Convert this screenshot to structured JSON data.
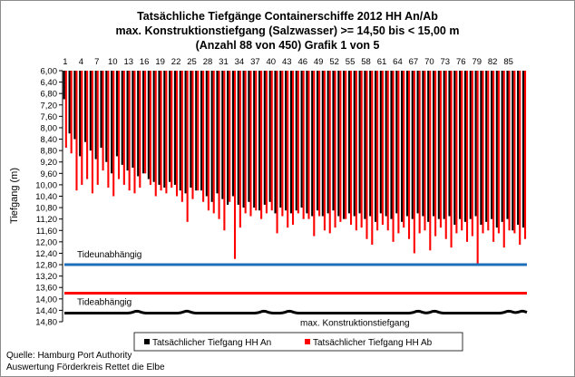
{
  "chart_data": {
    "type": "bar",
    "title_lines": [
      "Tatsächliche Tiefgänge Containerschiffe  2012 HH An/Ab",
      "max. Konstruktionstiefgang  (Salzwasser)  >= 14,50 bis < 15,00 m",
      "(Anzahl 88 von 450) Grafik 1 von 5"
    ],
    "ylabel": "Tiefgang (m)",
    "ylim": [
      6.0,
      14.8
    ],
    "y_inverted": true,
    "y_ticks": [
      "6,00",
      "6,40",
      "6,80",
      "7,20",
      "7,60",
      "8,00",
      "8,40",
      "8,80",
      "9,20",
      "9,60",
      "10,00",
      "10,40",
      "10,80",
      "11,20",
      "11,60",
      "12,00",
      "12,40",
      "12,80",
      "13,20",
      "13,60",
      "14,00",
      "14,40",
      "14,80"
    ],
    "x_tick_labels": [
      "1",
      "4",
      "7",
      "10",
      "13",
      "16",
      "19",
      "22",
      "25",
      "28",
      "31",
      "34",
      "37",
      "40",
      "43",
      "46",
      "49",
      "52",
      "55",
      "58",
      "61",
      "64",
      "67",
      "70",
      "73",
      "76",
      "79",
      "82",
      "85"
    ],
    "series": [
      {
        "name": "Tatsächlicher Tiefgang HH An",
        "color": "#000000",
        "values": [
          7.0,
          8.2,
          8.4,
          9.0,
          8.5,
          8.8,
          9.1,
          8.7,
          9.2,
          9.6,
          9.0,
          9.3,
          9.5,
          9.4,
          9.7,
          9.6,
          9.8,
          9.9,
          10.0,
          10.1,
          9.9,
          10.0,
          10.2,
          10.3,
          10.1,
          10.2,
          10.2,
          10.4,
          10.6,
          10.3,
          10.5,
          10.7,
          10.4,
          10.7,
          10.8,
          10.6,
          10.8,
          10.9,
          10.7,
          10.6,
          11.0,
          10.8,
          10.9,
          11.0,
          10.9,
          10.8,
          11.0,
          11.1,
          10.9,
          11.1,
          11.0,
          10.9,
          11.1,
          11.2,
          11.0,
          11.1,
          11.0,
          11.2,
          11.1,
          11.3,
          11.0,
          11.1,
          11.2,
          11.0,
          11.3,
          11.1,
          11.2,
          11.0,
          11.1,
          11.3,
          11.1,
          11.2,
          11.2,
          11.1,
          11.4,
          11.2,
          11.3,
          11.2,
          11.1,
          11.4,
          11.3,
          11.2,
          11.5,
          11.3,
          11.2,
          11.6,
          11.4,
          11.5
        ]
      },
      {
        "name": "Tatsächlicher Tiefgang HH Ab",
        "color": "#ff0000",
        "values": [
          8.7,
          8.9,
          10.2,
          10.0,
          9.8,
          10.3,
          10.0,
          9.5,
          10.1,
          10.4,
          9.8,
          10.0,
          10.2,
          10.3,
          10.1,
          9.6,
          10.0,
          10.4,
          10.2,
          10.3,
          10.1,
          10.4,
          10.6,
          11.3,
          10.5,
          10.2,
          10.6,
          10.9,
          11.0,
          11.2,
          11.6,
          10.6,
          12.6,
          11.5,
          11.0,
          11.1,
          10.9,
          11.2,
          11.0,
          10.9,
          11.7,
          11.1,
          11.5,
          11.4,
          11.0,
          11.2,
          11.2,
          11.8,
          11.1,
          11.6,
          11.7,
          11.5,
          11.3,
          11.2,
          11.4,
          11.6,
          11.5,
          11.9,
          12.1,
          11.6,
          11.4,
          11.6,
          12.0,
          11.7,
          11.5,
          11.9,
          12.4,
          11.7,
          11.6,
          12.3,
          11.8,
          11.5,
          11.9,
          12.2,
          11.7,
          11.6,
          12.0,
          11.8,
          12.8,
          11.7,
          11.6,
          12.0,
          11.7,
          12.2,
          11.6,
          11.7,
          12.1,
          11.9
        ]
      }
    ],
    "reference_lines": [
      {
        "label": "Tideunabhängig",
        "value": 12.8,
        "color": "#1f6fb8"
      },
      {
        "label": "Tideabhängig",
        "value": 13.8,
        "color": "#ff0000"
      },
      {
        "label": "max. Konstruktionstiefgang",
        "value": 14.5,
        "color": "#000000"
      }
    ],
    "legend": {
      "placement": "bottom",
      "entries": [
        "Tatsächlicher Tiefgang HH An",
        "Tatsächlicher Tiefgang HH Ab"
      ]
    },
    "grid": false
  },
  "footer": {
    "source_line1": "Quelle: Hamburg Port Authority",
    "source_line2": "Auswertung Förderkreis Rettet die Elbe"
  }
}
